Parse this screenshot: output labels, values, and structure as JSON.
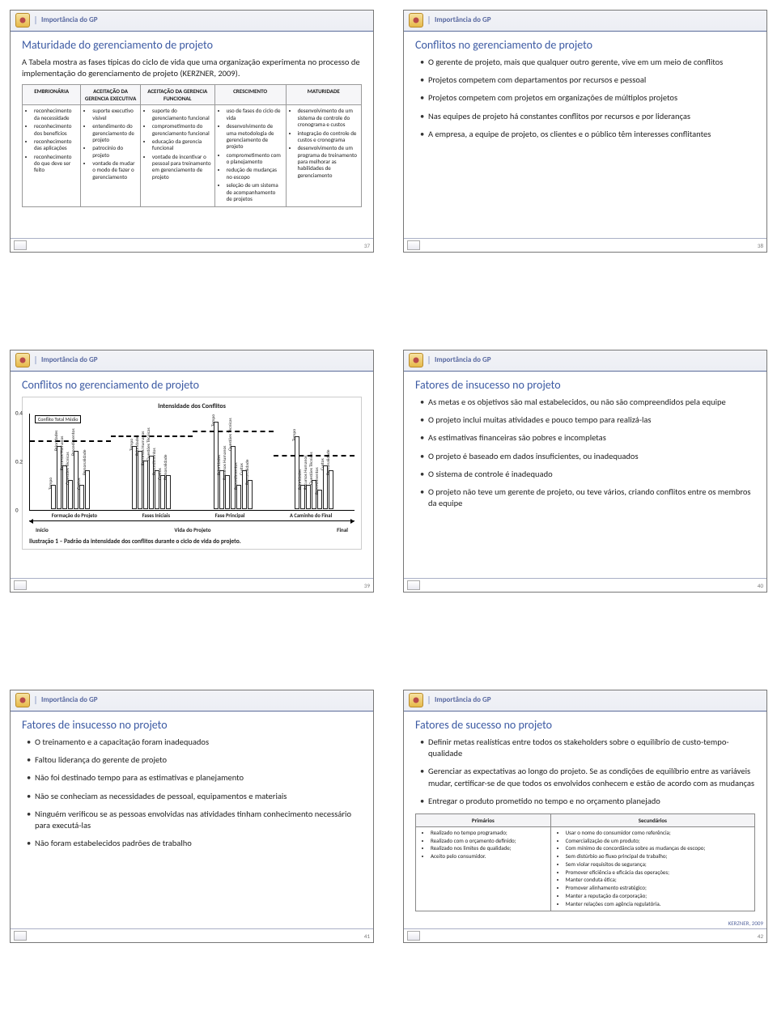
{
  "crumb": "Importância do GP",
  "slide37": {
    "num": "37",
    "title": "Maturidade do gerenciamento de projeto",
    "lead": "A Tabela mostra as fases típicas do ciclo de vida que uma organização experimenta no processo de implementação do gerenciamento de projeto (KERZNER, 2009).",
    "mat_headers": [
      "EMBRIONÁRIA",
      "ACEITAÇÃO DA GERENCIA EXECUTIVA",
      "ACEITAÇÃO DA GERENCIA FUNCIONAL",
      "CRESCIMENTO",
      "MATURIDADE"
    ],
    "mat_cols": [
      [
        "reconhecimento da necessidade",
        "reconhecimento dos benefícios",
        "reconhecimento das aplicações",
        "reconhecimento do que deve ser feito"
      ],
      [
        "suporte executivo visível",
        "entendimento do gerenciamento de projeto",
        "patrocínio do projeto",
        "vontade de mudar o modo de fazer o gerenciamento"
      ],
      [
        "suporte do gerenciamento funcional",
        "comprometimento do gerenciamento funcional",
        "educação da gerencia funcional",
        "vontade de incentivar o pessoal para treinamento em gerenciamento de projeto"
      ],
      [
        "uso de fases do ciclo de vida",
        "desenvolvimento de uma metodologia de gerenciamento de projeto",
        "comprometimento com o planejamento",
        "redução de mudanças no escopo",
        "seleção de um sistema de acompanhamento de projetos"
      ],
      [
        "desenvolvimento de um sistema de controle do cronograma e custos",
        "integração do controle de custos e cronograma",
        "desenvolvimento de um programa de treinamento para melhorar as habilidades de gerenciamento"
      ]
    ]
  },
  "slide38": {
    "num": "38",
    "title": "Conflitos no gerenciamento de projeto",
    "bullets": [
      "O gerente de projeto, mais que qualquer outro gerente, vive em um meio de conflitos",
      "Projetos competem com departamentos por recursos e pessoal",
      "Projetos competem com projetos em organizações de múltiplos projetos",
      "Nas equipes de projeto há constantes conflitos por recursos e por lideranças",
      "A empresa, a equipe de projeto, os clientes e o público têm interesses conflitantes"
    ]
  },
  "slide39": {
    "num": "39",
    "title": "Conflitos no gerenciamento de projeto",
    "chart": {
      "chartTitle": "Intensidade dos Conflitos",
      "medioLabel": "Conflito Total Médio",
      "ylim": 0.4,
      "ytick": 0.2,
      "barLabels": [
        "Tempo",
        "Prioridades",
        "Recursos Humanos",
        "Questões Técnicas",
        "Procedimentos",
        "Custos",
        "Personalidade"
      ],
      "phases": [
        "Formação do Projeto",
        "Fases Iniciais",
        "Fase Principal",
        "A Caminho do Final"
      ],
      "series": [
        [
          0.1,
          0.26,
          0.18,
          0.12,
          0.24,
          0.1,
          0.16
        ],
        [
          0.26,
          0.24,
          0.2,
          0.22,
          0.16,
          0.14,
          0.14
        ],
        [
          0.36,
          0.16,
          0.14,
          0.26,
          0.1,
          0.16,
          0.12
        ],
        [
          0.3,
          0.1,
          0.1,
          0.12,
          0.08,
          0.18,
          0.16
        ]
      ],
      "medioLine": [
        0.28,
        0.3,
        0.32,
        0.22
      ],
      "axisStart": "Início",
      "axisMid": "Vida do Projeto",
      "axisEnd": "Final",
      "caption": "Ilustração 1 – Padrão da intensidade dos conflitos durante o ciclo de vida do projeto."
    }
  },
  "slide40": {
    "num": "40",
    "title": "Fatores de insucesso no projeto",
    "bullets": [
      "As metas e os objetivos são mal estabelecidos, ou não são compreendidos pela equipe",
      "O projeto inclui muitas atividades e pouco tempo para realizá-las",
      "As estimativas financeiras são pobres e incompletas",
      "O projeto é baseado em dados insuficientes, ou inadequados",
      "O sistema de controle é inadequado",
      "O projeto não teve um gerente de projeto, ou teve vários, criando conflitos entre os membros da equipe"
    ]
  },
  "slide41": {
    "num": "41",
    "title": "Fatores de insucesso no projeto",
    "bullets": [
      "O treinamento e a capacitação foram inadequados",
      "Faltou liderança do gerente de projeto",
      "Não foi destinado tempo para as estimativas e planejamento",
      "Não se conheciam as necessidades de pessoal, equipamentos e materiais",
      "Ninguém verificou se as pessoas envolvidas nas atividades tinham conhecimento necessário para executá-las",
      "Não foram estabelecidos padrões de trabalho"
    ]
  },
  "slide42": {
    "num": "42",
    "title": "Fatores de sucesso no projeto",
    "bullets": [
      "Definir metas realísticas entre todos os stakeholders sobre o equilíbrio de custo-tempo-qualidade",
      "Gerenciar as expectativas ao longo do projeto. Se as condições de equilíbrio entre as variáveis mudar, certificar-se de que todos os envolvidos conhecem e estão de acordo com as mudanças",
      "Entregar o produto prometido no tempo e no orçamento planejado"
    ],
    "ps_headers": [
      "Primários",
      "Secundários"
    ],
    "primarios": [
      "Realizado no tempo programado;",
      "Realizado com o orçamento definido;",
      "Realizado nos limites de qualidade;",
      "Aceito pelo consumidor."
    ],
    "secundarios": [
      "Usar o nome do consumidor como referência;",
      "Comercialização de um produto;",
      "Com mínimo de concordância sobre as mudanças de escopo;",
      "Sem distúrbio ao fluxo principal de trabalho;",
      "Sem violar requisitos de segurança;",
      "Promover eficiência e eficácia das operações;",
      "Manter conduta ética;",
      "Promover alinhamento estratégico;",
      "Manter a reputação da corporação;",
      "Manter relações com agência regulatória."
    ],
    "cite": "KERZNER, 2009"
  },
  "colors": {
    "titleColor": "#3c5aa3",
    "crumbColor": "#5868a0",
    "border": "#777777"
  }
}
